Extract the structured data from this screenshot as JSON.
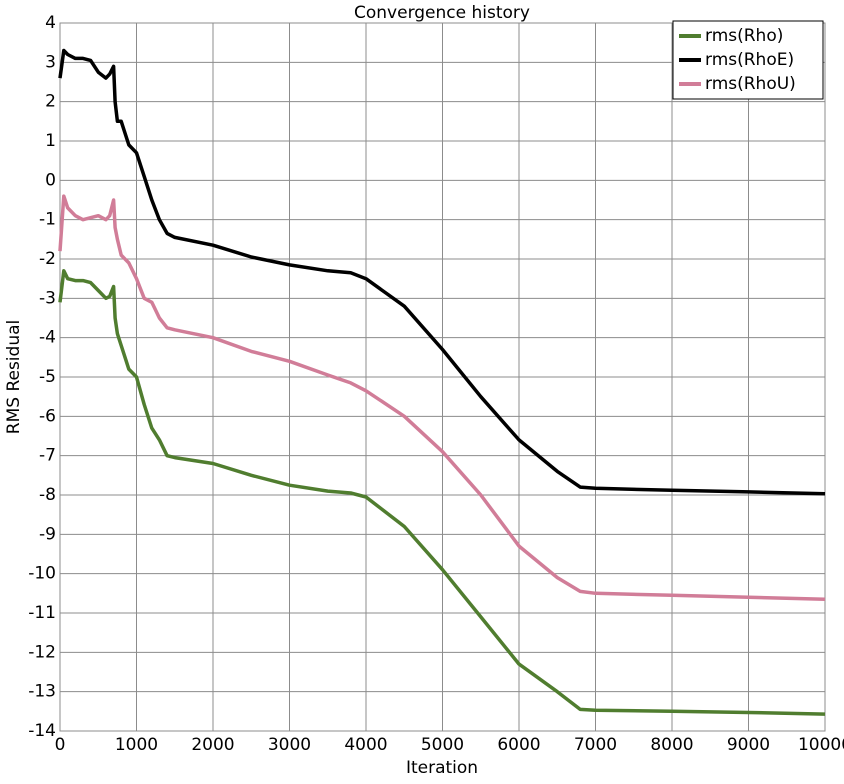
{
  "chart_data": {
    "type": "line",
    "title": "Convergence history",
    "x_label": "Iteration",
    "y_label": "RMS Residual",
    "x": [
      0,
      50,
      100,
      200,
      300,
      400,
      500,
      600,
      650,
      700,
      720,
      750,
      800,
      900,
      1000,
      1100,
      1200,
      1300,
      1400,
      1500,
      2000,
      2500,
      3000,
      3500,
      3800,
      4000,
      4500,
      5000,
      5500,
      6000,
      6500,
      6800,
      7000,
      8000,
      9000,
      10000
    ],
    "series": [
      {
        "name": "rms(Rho)",
        "color": "#507d2f",
        "values": [
          -3.1,
          -2.3,
          -2.5,
          -2.55,
          -2.55,
          -2.6,
          -2.8,
          -3.0,
          -2.95,
          -2.7,
          -3.5,
          -3.9,
          -4.2,
          -4.8,
          -5.0,
          -5.7,
          -6.3,
          -6.6,
          -7.0,
          -7.05,
          -7.2,
          -7.5,
          -7.75,
          -7.9,
          -7.95,
          -8.05,
          -8.8,
          -9.9,
          -11.1,
          -12.3,
          -13.0,
          -13.45,
          -13.47,
          -13.5,
          -13.53,
          -13.57
        ]
      },
      {
        "name": "rms(RhoE)",
        "color": "#000000",
        "values": [
          2.6,
          3.3,
          3.2,
          3.1,
          3.1,
          3.05,
          2.75,
          2.6,
          2.7,
          2.9,
          2.0,
          1.5,
          1.5,
          0.9,
          0.7,
          0.1,
          -0.5,
          -1.0,
          -1.35,
          -1.45,
          -1.65,
          -1.95,
          -2.15,
          -2.3,
          -2.35,
          -2.5,
          -3.2,
          -4.3,
          -5.5,
          -6.6,
          -7.4,
          -7.8,
          -7.83,
          -7.88,
          -7.92,
          -7.97
        ]
      },
      {
        "name": "rms(RhoU)",
        "color": "#d17d98",
        "values": [
          -1.8,
          -0.4,
          -0.7,
          -0.9,
          -1.0,
          -0.95,
          -0.9,
          -1.0,
          -0.9,
          -0.5,
          -1.2,
          -1.5,
          -1.9,
          -2.1,
          -2.5,
          -3.0,
          -3.1,
          -3.5,
          -3.75,
          -3.8,
          -4.0,
          -4.35,
          -4.6,
          -4.95,
          -5.15,
          -5.35,
          -6.0,
          -6.9,
          -8.0,
          -9.3,
          -10.1,
          -10.45,
          -10.5,
          -10.55,
          -10.6,
          -10.65
        ]
      }
    ],
    "xlim": [
      0,
      10000
    ],
    "ylim": [
      -14,
      4
    ],
    "xticks": [
      0,
      1000,
      2000,
      3000,
      4000,
      5000,
      6000,
      7000,
      8000,
      9000,
      10000
    ],
    "yticks": [
      -14,
      -13,
      -12,
      -11,
      -10,
      -9,
      -8,
      -7,
      -6,
      -5,
      -4,
      -3,
      -2,
      -1,
      0,
      1,
      2,
      3,
      4
    ],
    "grid": true,
    "legend": "top-right"
  }
}
